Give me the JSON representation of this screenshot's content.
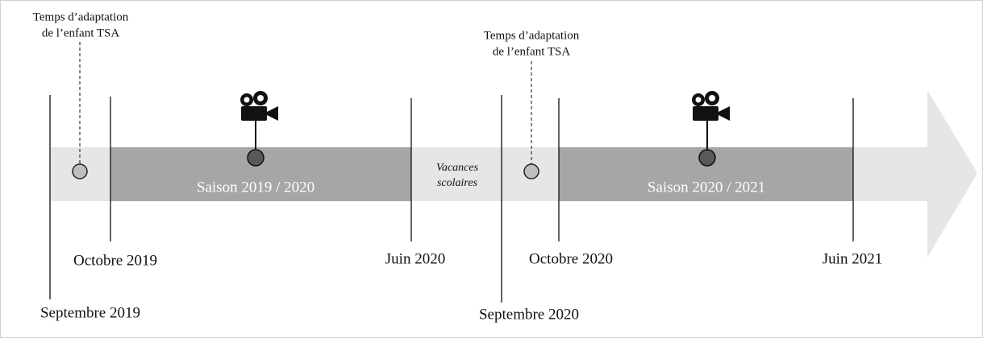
{
  "timeline": {
    "annotations": [
      {
        "line1": "Temps d’adaptation",
        "line2": "de l’enfant TSA"
      },
      {
        "line1": "Temps d’adaptation",
        "line2": "de l’enfant TSA"
      }
    ],
    "seasons": [
      "Saison  2019 / 2020",
      "Saison  2020 / 2021"
    ],
    "vacation": {
      "line1": "Vacances",
      "line2": "scolaires"
    },
    "dates": {
      "octobre_2019": "Octobre  2019",
      "juin_2020": "Juin  2020",
      "octobre_2020": "Octobre 2020",
      "juin_2021": "Juin  2021",
      "septembre_2019": "Septembre  2019",
      "septembre_2020": "Septembre  2020"
    }
  }
}
